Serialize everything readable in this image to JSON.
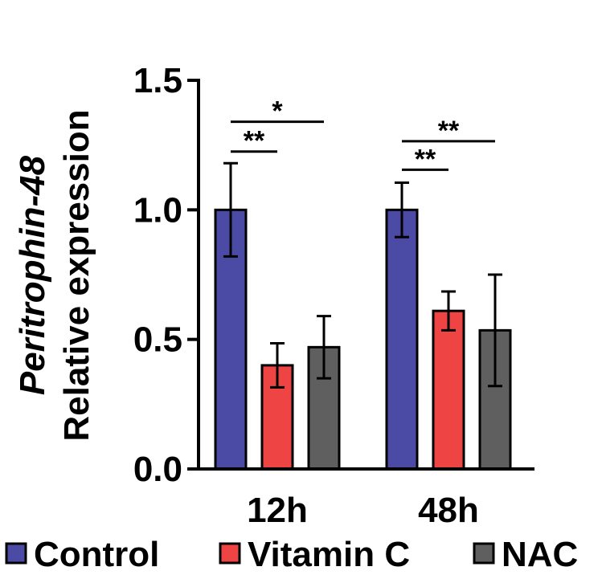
{
  "chart_data": {
    "type": "bar",
    "categories": [
      "12h",
      "48h"
    ],
    "series": [
      {
        "name": "Control",
        "color": "#4b4ba6",
        "values": [
          1.0,
          1.0
        ],
        "errors": [
          0.18,
          0.105
        ]
      },
      {
        "name": "Vitamin C",
        "color": "#ef4444",
        "values": [
          0.4,
          0.61
        ],
        "errors": [
          0.085,
          0.075
        ]
      },
      {
        "name": "NAC",
        "color": "#5f5f5f",
        "values": [
          0.47,
          0.535
        ],
        "errors": [
          0.12,
          0.215
        ]
      }
    ],
    "title": "",
    "xlabel": "",
    "ylabel_lines": [
      "Peritrophin-48",
      "Relative expression"
    ],
    "ylim": [
      0,
      1.5
    ],
    "yticks": [
      0.0,
      0.5,
      1.0,
      1.5
    ],
    "ytick_labels": [
      "0.0",
      "0.5",
      "1.0",
      "1.5"
    ],
    "grid": false,
    "legend_position": "bottom",
    "significance": [
      {
        "category": "12h",
        "from_series": 0,
        "to_series": 1,
        "label": "**",
        "y": 1.225
      },
      {
        "category": "12h",
        "from_series": 0,
        "to_series": 2,
        "label": "*",
        "y": 1.34
      },
      {
        "category": "48h",
        "from_series": 0,
        "to_series": 1,
        "label": "**",
        "y": 1.155
      },
      {
        "category": "48h",
        "from_series": 0,
        "to_series": 2,
        "label": "**",
        "y": 1.265
      }
    ]
  }
}
